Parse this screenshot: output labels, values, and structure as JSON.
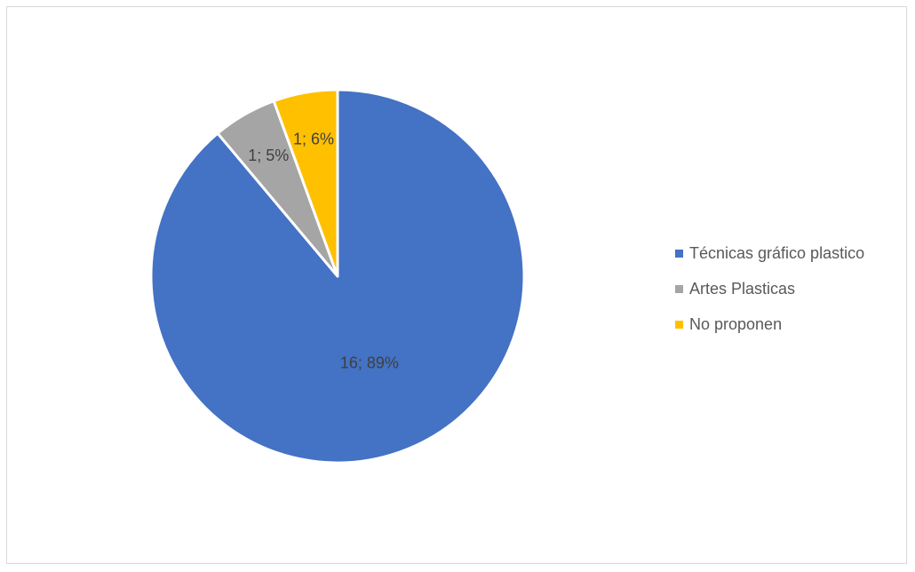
{
  "chart_data": {
    "type": "pie",
    "title": "",
    "categories": [
      "Técnicas gráfico plastico",
      "Artes Plasticas",
      "No proponen"
    ],
    "values": [
      16,
      1,
      1
    ],
    "data_labels": [
      "16; 89%",
      "1; 5%",
      "1; 6%"
    ],
    "colors": [
      "#4472c4",
      "#a5a5a5",
      "#ffc000"
    ],
    "start_angle": "top (12 o'clock), clockwise",
    "legend_position": "right"
  }
}
